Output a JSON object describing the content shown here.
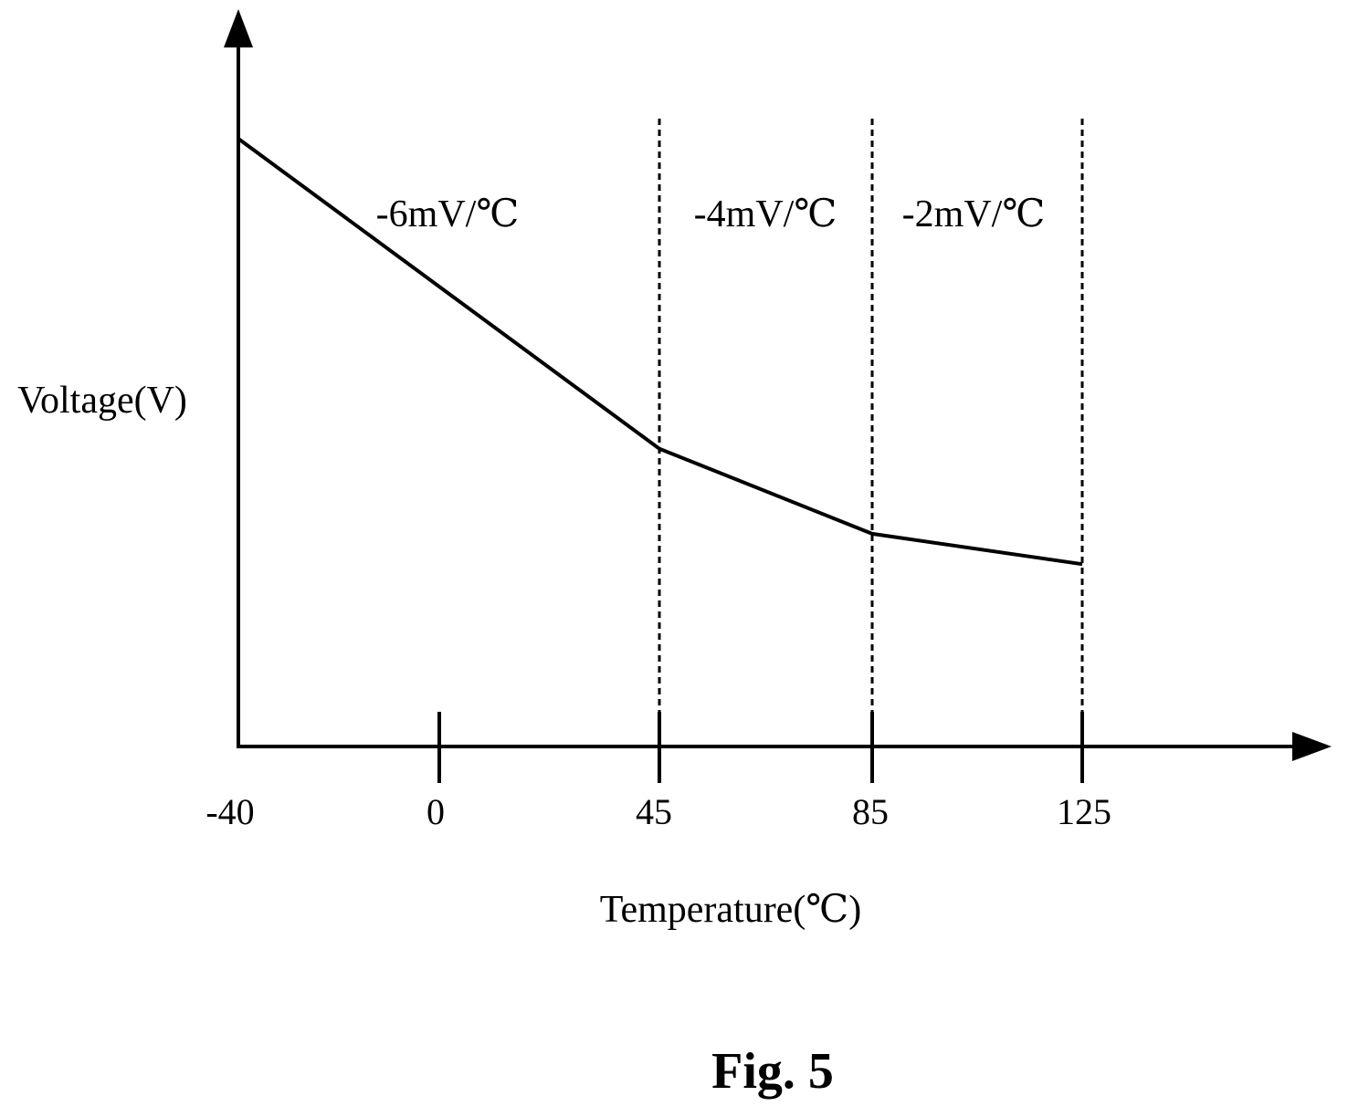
{
  "chart_data": {
    "type": "line",
    "xlabel": "Temperature(℃)",
    "ylabel": "Voltage(V)",
    "x_ticks": [
      "-40",
      "0",
      "45",
      "85",
      "125"
    ],
    "x": [
      -40,
      45,
      85,
      125
    ],
    "series": [
      {
        "values": [
          1.0,
          0.49,
          0.35,
          0.3
        ]
      }
    ],
    "breakpoints": [
      45,
      85,
      125
    ],
    "segment_labels": [
      "-6mV/℃",
      "-4mV/℃",
      "-2mV/℃"
    ],
    "grid": false
  },
  "caption": "Fig. 5"
}
